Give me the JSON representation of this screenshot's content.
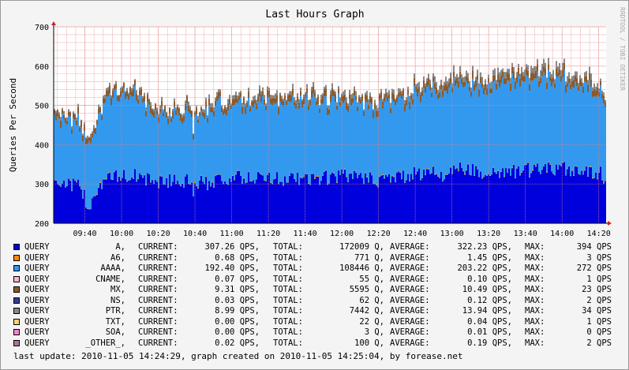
{
  "chart_data": {
    "type": "area",
    "stacked": true,
    "title": "Last Hours Graph",
    "ylabel": "Queries Per Second",
    "watermark": "RRDTOOL / TOBI OETIKER",
    "ylim": [
      200,
      700
    ],
    "yticks": [
      200,
      300,
      400,
      500,
      600,
      700
    ],
    "xlim": [
      "09:23",
      "14:24"
    ],
    "xticks": [
      "09:40",
      "10:00",
      "10:20",
      "10:40",
      "11:00",
      "11:20",
      "11:40",
      "12:00",
      "12:20",
      "12:40",
      "13:00",
      "13:20",
      "13:40",
      "14:00",
      "14:20"
    ],
    "grid": true,
    "series_colors": [
      "#0000dd",
      "#ff8c00",
      "#3399ee",
      "#ffb6c1",
      "#8b5a2b",
      "#3b3b8b",
      "#888888",
      "#f5d27a",
      "#ee88cc",
      "#aa7799"
    ],
    "series_names": [
      "A",
      "A6",
      "AAAA",
      "CNAME",
      "MX",
      "NS",
      "PTR",
      "TXT",
      "SOA",
      "_OTHER_"
    ],
    "profile_points": {
      "time": [
        "09:23",
        "09:30",
        "09:35",
        "09:38",
        "09:40",
        "09:42",
        "09:45",
        "09:50",
        "10:00",
        "10:05",
        "10:10",
        "10:20",
        "10:30",
        "10:35",
        "10:38",
        "10:39",
        "10:40",
        "10:45",
        "10:50",
        "11:00",
        "11:20",
        "11:40",
        "12:00",
        "12:20",
        "12:40",
        "12:45",
        "12:50",
        "12:55",
        "13:00",
        "13:10",
        "13:20",
        "13:30",
        "13:40",
        "13:50",
        "14:00",
        "14:10",
        "14:20",
        "14:24"
      ],
      "A": [
        310,
        300,
        295,
        290,
        255,
        245,
        280,
        310,
        320,
        325,
        315,
        305,
        310,
        308,
        300,
        260,
        305,
        300,
        310,
        315,
        315,
        310,
        320,
        310,
        325,
        330,
        330,
        320,
        340,
        335,
        330,
        330,
        335,
        335,
        340,
        335,
        330,
        310
      ],
      "AAAA": [
        165,
        160,
        155,
        150,
        150,
        165,
        170,
        195,
        205,
        210,
        190,
        170,
        165,
        170,
        170,
        150,
        175,
        180,
        185,
        185,
        190,
        195,
        185,
        180,
        200,
        210,
        205,
        215,
        215,
        210,
        220,
        225,
        225,
        225,
        220,
        215,
        205,
        190
      ],
      "MX": [
        15,
        14,
        14,
        14,
        12,
        12,
        14,
        15,
        16,
        16,
        15,
        15,
        15,
        15,
        14,
        13,
        14,
        14,
        15,
        15,
        15,
        15,
        16,
        15,
        16,
        17,
        16,
        16,
        17,
        16,
        16,
        17,
        17,
        16,
        16,
        16,
        15,
        14
      ],
      "PTR": [
        5,
        5,
        5,
        5,
        5,
        5,
        5,
        6,
        6,
        6,
        6,
        6,
        6,
        6,
        6,
        5,
        6,
        6,
        7,
        7,
        8,
        8,
        8,
        8,
        10,
        12,
        14,
        12,
        12,
        12,
        13,
        14,
        15,
        15,
        14,
        13,
        12,
        10
      ]
    }
  },
  "legend": [
    {
      "label": "QUERY",
      "type": "A,",
      "current_label": "CURRENT:",
      "current": "307.26 QPS,",
      "total_label": "TOTAL:",
      "total": "172009 Q,",
      "average_label": "AVERAGE:",
      "average": "322.23 QPS,",
      "max_label": "MAX:",
      "max": "394 QPS",
      "color": "#0000dd"
    },
    {
      "label": "QUERY",
      "type": "A6,",
      "current_label": "CURRENT:",
      "current": "0.68 QPS,",
      "total_label": "TOTAL:",
      "total": "771 Q,",
      "average_label": "AVERAGE:",
      "average": "1.45 QPS,",
      "max_label": "MAX:",
      "max": "3 QPS",
      "color": "#ff8c00"
    },
    {
      "label": "QUERY",
      "type": "AAAA,",
      "current_label": "CURRENT:",
      "current": "192.40 QPS,",
      "total_label": "TOTAL:",
      "total": "108446 Q,",
      "average_label": "AVERAGE:",
      "average": "203.22 QPS,",
      "max_label": "MAX:",
      "max": "272 QPS",
      "color": "#3399ee"
    },
    {
      "label": "QUERY",
      "type": "CNAME,",
      "current_label": "CURRENT:",
      "current": "0.07 QPS,",
      "total_label": "TOTAL:",
      "total": "55 Q,",
      "average_label": "AVERAGE:",
      "average": "0.10 QPS,",
      "max_label": "MAX:",
      "max": "1 QPS",
      "color": "#ffb6c1"
    },
    {
      "label": "QUERY",
      "type": "MX,",
      "current_label": "CURRENT:",
      "current": "9.31 QPS,",
      "total_label": "TOTAL:",
      "total": "5595 Q,",
      "average_label": "AVERAGE:",
      "average": "10.49 QPS,",
      "max_label": "MAX:",
      "max": "23 QPS",
      "color": "#8b5a2b"
    },
    {
      "label": "QUERY",
      "type": "NS,",
      "current_label": "CURRENT:",
      "current": "0.03 QPS,",
      "total_label": "TOTAL:",
      "total": "62 Q,",
      "average_label": "AVERAGE:",
      "average": "0.12 QPS,",
      "max_label": "MAX:",
      "max": "2 QPS",
      "color": "#3b3b8b"
    },
    {
      "label": "QUERY",
      "type": "PTR,",
      "current_label": "CURRENT:",
      "current": "8.99 QPS,",
      "total_label": "TOTAL:",
      "total": "7442 Q,",
      "average_label": "AVERAGE:",
      "average": "13.94 QPS,",
      "max_label": "MAX:",
      "max": "34 QPS",
      "color": "#888888"
    },
    {
      "label": "QUERY",
      "type": "TXT,",
      "current_label": "CURRENT:",
      "current": "0.00 QPS,",
      "total_label": "TOTAL:",
      "total": "22 Q,",
      "average_label": "AVERAGE:",
      "average": "0.04 QPS,",
      "max_label": "MAX:",
      "max": "1 QPS",
      "color": "#f5d27a"
    },
    {
      "label": "QUERY",
      "type": "SOA,",
      "current_label": "CURRENT:",
      "current": "0.00 QPS,",
      "total_label": "TOTAL:",
      "total": "3 Q,",
      "average_label": "AVERAGE:",
      "average": "0.01 QPS,",
      "max_label": "MAX:",
      "max": "0 QPS",
      "color": "#ee88cc"
    },
    {
      "label": "QUERY",
      "type": "_OTHER_,",
      "current_label": "CURRENT:",
      "current": "0.02 QPS,",
      "total_label": "TOTAL:",
      "total": "100 Q,",
      "average_label": "AVERAGE:",
      "average": "0.19 QPS,",
      "max_label": "MAX:",
      "max": "2 QPS",
      "color": "#aa7799"
    }
  ],
  "footer": "last update: 2010-11-05 14:24:29, graph created on 2010-11-05 14:25:04, by forease.net"
}
